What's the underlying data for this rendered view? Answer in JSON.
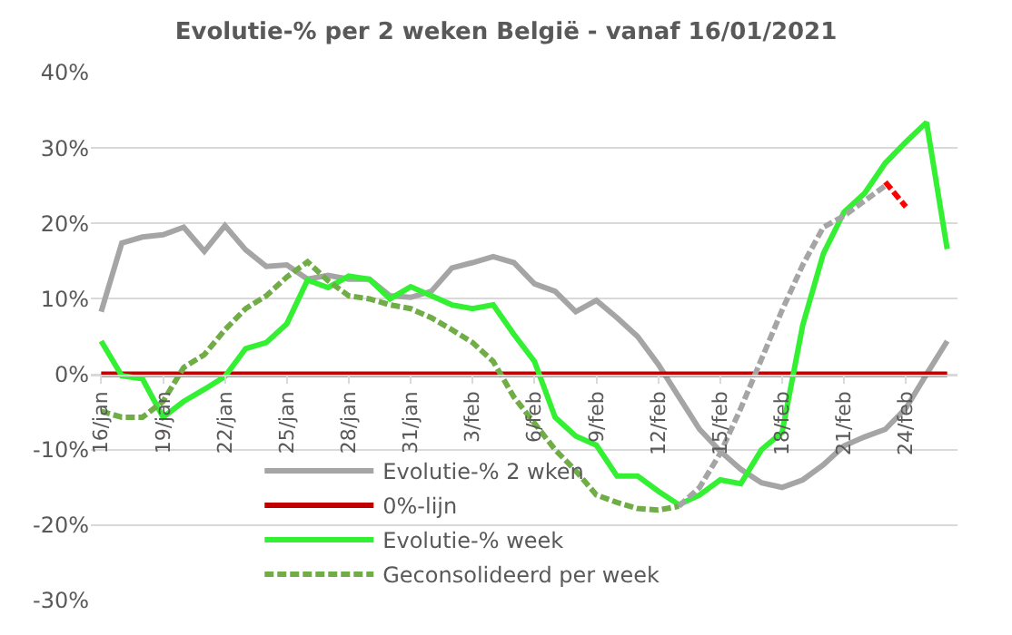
{
  "chart_data": {
    "type": "line",
    "title": "Evolutie-% per 2 weken België - vanaf 16/01/2021",
    "x": [
      "2021-01-16",
      "2021-01-17",
      "2021-01-18",
      "2021-01-19",
      "2021-01-20",
      "2021-01-21",
      "2021-01-22",
      "2021-01-23",
      "2021-01-24",
      "2021-01-25",
      "2021-01-26",
      "2021-01-27",
      "2021-01-28",
      "2021-01-29",
      "2021-01-30",
      "2021-01-31",
      "2021-02-01",
      "2021-02-02",
      "2021-02-03",
      "2021-02-04",
      "2021-02-05",
      "2021-02-06",
      "2021-02-07",
      "2021-02-08",
      "2021-02-09",
      "2021-02-10",
      "2021-02-11",
      "2021-02-12",
      "2021-02-13",
      "2021-02-14",
      "2021-02-15",
      "2021-02-16",
      "2021-02-17",
      "2021-02-18",
      "2021-02-19",
      "2021-02-20",
      "2021-02-21",
      "2021-02-22",
      "2021-02-23",
      "2021-02-24",
      "2021-02-25",
      "2021-02-26"
    ],
    "series": [
      {
        "name": "Evolutie-% 2 wken",
        "color": "#a5a5a5",
        "line_style": "solid",
        "values": [
          8.3,
          17.4,
          18.2,
          18.5,
          19.5,
          16.3,
          19.7,
          16.5,
          14.3,
          14.5,
          12.6,
          13.1,
          12.6,
          12.6,
          10.4,
          10.2,
          11.0,
          14.1,
          14.8,
          15.6,
          14.8,
          12.0,
          11.0,
          8.3,
          9.8,
          7.5,
          5.0,
          1.3,
          -3.0,
          -7.3,
          -10.2,
          -12.6,
          -14.4,
          -15,
          -14,
          -12,
          -9.5,
          -8.3,
          -7.3,
          -4.5,
          0,
          4.4
        ]
      },
      {
        "name": "0%-lijn",
        "color": "#c00000",
        "line_style": "solid",
        "values": [
          0,
          0,
          0,
          0,
          0,
          0,
          0,
          0,
          0,
          0,
          0,
          0,
          0,
          0,
          0,
          0,
          0,
          0,
          0,
          0,
          0,
          0,
          0,
          0,
          0,
          0,
          0,
          0,
          0,
          0,
          0,
          0,
          0,
          0,
          0,
          0,
          0,
          0,
          0,
          0,
          0,
          0
        ]
      },
      {
        "name": "Evolutie-% week",
        "color": "#33f033",
        "line_style": "solid",
        "values": [
          4.4,
          -0.2,
          -0.6,
          -5.7,
          -3.6,
          -2.0,
          -0.3,
          3.4,
          4.2,
          6.7,
          12.5,
          11.5,
          13.0,
          12.6,
          10.0,
          11.6,
          10.4,
          9.2,
          8.7,
          9.2,
          5.3,
          1.7,
          -5.7,
          -8.2,
          -9.4,
          -13.5,
          -13.5,
          -15.5,
          -17.3,
          -16,
          -14,
          -14.5,
          -10,
          -7.7,
          6.5,
          16,
          21.5,
          24,
          28,
          30.8,
          33.4,
          16.6
        ]
      },
      {
        "name": "Geconsolideerd per week",
        "color": "#70ad47",
        "line_style": "dashed",
        "values": [
          -4.9,
          -5.7,
          -5.7,
          -3.6,
          0.9,
          2.6,
          5.9,
          8.7,
          10.4,
          12.9,
          14.9,
          12.4,
          10.4,
          10.0,
          9.2,
          8.7,
          7.5,
          5.9,
          4.2,
          1.7,
          -3,
          -6.5,
          -10,
          -12.8,
          -16,
          -17,
          -17.8,
          -18,
          -17.5,
          null,
          null,
          null,
          null,
          null,
          null,
          null,
          null,
          null,
          null,
          null,
          null,
          null
        ]
      },
      {
        "color": "#a5a5a5",
        "line_style": "dashed",
        "values": [
          null,
          null,
          null,
          null,
          null,
          null,
          null,
          null,
          null,
          null,
          null,
          null,
          null,
          null,
          null,
          null,
          null,
          null,
          null,
          null,
          null,
          null,
          null,
          null,
          null,
          null,
          null,
          null,
          -17.5,
          -15,
          -10.5,
          -4.5,
          2,
          8.5,
          14.5,
          19.5,
          21,
          23,
          25,
          null,
          null,
          null
        ]
      },
      {
        "color": "#ff0000",
        "line_style": "dashed",
        "values": [
          null,
          null,
          null,
          null,
          null,
          null,
          null,
          null,
          null,
          null,
          null,
          null,
          null,
          null,
          null,
          null,
          null,
          null,
          null,
          null,
          null,
          null,
          null,
          null,
          null,
          null,
          null,
          null,
          null,
          null,
          null,
          null,
          null,
          null,
          null,
          null,
          null,
          null,
          25.5,
          22.2,
          null,
          null
        ]
      }
    ],
    "xlim": [
      "2021-01-15T12:00",
      "2021-02-26T12:00"
    ],
    "xticks": [
      {
        "value": "2021-01-16",
        "label": "16/jan"
      },
      {
        "value": "2021-01-19",
        "label": "19/jan"
      },
      {
        "value": "2021-01-22",
        "label": "22/jan"
      },
      {
        "value": "2021-01-25",
        "label": "25/jan"
      },
      {
        "value": "2021-01-28",
        "label": "28/jan"
      },
      {
        "value": "2021-01-31",
        "label": "31/jan"
      },
      {
        "value": "2021-02-03",
        "label": "3/feb"
      },
      {
        "value": "2021-02-06",
        "label": "6/feb"
      },
      {
        "value": "2021-02-09",
        "label": "9/feb"
      },
      {
        "value": "2021-02-12",
        "label": "12/feb"
      },
      {
        "value": "2021-02-15",
        "label": "15/feb"
      },
      {
        "value": "2021-02-18",
        "label": "18/feb"
      },
      {
        "value": "2021-02-21",
        "label": "21/feb"
      },
      {
        "value": "2021-02-24",
        "label": "24/feb"
      }
    ],
    "ylim": [
      -30,
      40
    ],
    "yticks": [
      {
        "value": -30,
        "label": "-30%"
      },
      {
        "value": -20,
        "label": "-20%"
      },
      {
        "value": -10,
        "label": "-10%"
      },
      {
        "value": 0,
        "label": "0%"
      },
      {
        "value": 10,
        "label": "10%"
      },
      {
        "value": 20,
        "label": "20%"
      },
      {
        "value": 30,
        "label": "30%"
      },
      {
        "value": 40,
        "label": "40%"
      }
    ],
    "grid": "y",
    "legend": "bottom",
    "marker": "none"
  }
}
